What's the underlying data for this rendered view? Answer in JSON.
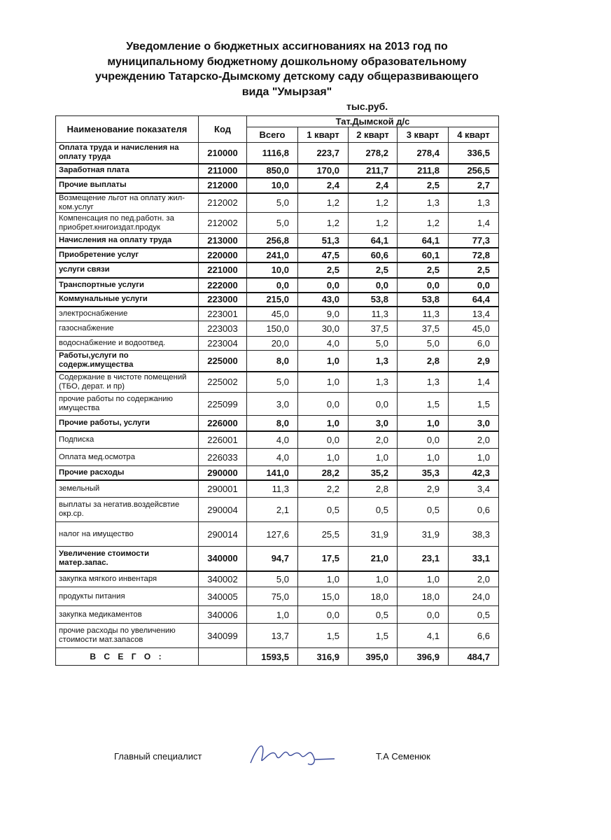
{
  "title_lines": [
    "Уведомление о бюджетных ассигнованиях на 2013 год по",
    "муниципальному бюджетному дошкольному образовательному",
    "учреждению Татарско-Дымскому детскому саду общеразвивающего",
    "вида \"Умырзая\""
  ],
  "units": "тыс.руб.",
  "table": {
    "header": {
      "name": "Наименование показателя",
      "code": "Код",
      "group": "Тат.Дымской д/с",
      "columns": [
        "Всего",
        "1 кварт",
        "2 кварт",
        "3 кварт",
        "4 кварт"
      ]
    },
    "rows": [
      {
        "bold": true,
        "cells": [
          "Оплата труда и начисления на оплату труда",
          "210000",
          "1116,8",
          "223,7",
          "278,2",
          "278,4",
          "336,5"
        ]
      },
      {
        "bold": true,
        "cells": [
          "Заработная плата",
          "211000",
          "850,0",
          "170,0",
          "211,7",
          "211,8",
          "256,5"
        ]
      },
      {
        "bold": true,
        "cells": [
          "Прочие выплаты",
          "212000",
          "10,0",
          "2,4",
          "2,4",
          "2,5",
          "2,7"
        ]
      },
      {
        "bold": false,
        "cells": [
          "Возмещение льгот на оплату жил-ком.услуг",
          "212002",
          "5,0",
          "1,2",
          "1,2",
          "1,3",
          "1,3"
        ]
      },
      {
        "bold": false,
        "cells": [
          "Компенсация по пед.работн. за приобрет.книгоиздат.продук",
          "212002",
          "5,0",
          "1,2",
          "1,2",
          "1,2",
          "1,4"
        ]
      },
      {
        "bold": true,
        "cells": [
          "Начисления на оплату труда",
          "213000",
          "256,8",
          "51,3",
          "64,1",
          "64,1",
          "77,3"
        ]
      },
      {
        "bold": true,
        "cells": [
          "Приобретение услуг",
          "220000",
          "241,0",
          "47,5",
          "60,6",
          "60,1",
          "72,8"
        ]
      },
      {
        "bold": true,
        "cells": [
          "услуги связи",
          "221000",
          "10,0",
          "2,5",
          "2,5",
          "2,5",
          "2,5"
        ]
      },
      {
        "bold": true,
        "cells": [
          "Транспортные услуги",
          "222000",
          "0,0",
          "0,0",
          "0,0",
          "0,0",
          "0,0"
        ]
      },
      {
        "bold": true,
        "cells": [
          "Коммунальные услуги",
          "223000",
          "215,0",
          "43,0",
          "53,8",
          "53,8",
          "64,4"
        ]
      },
      {
        "bold": false,
        "cells": [
          "электроснабжение",
          "223001",
          "45,0",
          "9,0",
          "11,3",
          "11,3",
          "13,4"
        ]
      },
      {
        "bold": false,
        "cells": [
          "газоснабжение",
          "223003",
          "150,0",
          "30,0",
          "37,5",
          "37,5",
          "45,0"
        ]
      },
      {
        "bold": false,
        "cells": [
          "водоснабжение и водоотвед.",
          "223004",
          "20,0",
          "4,0",
          "5,0",
          "5,0",
          "6,0"
        ]
      },
      {
        "bold": true,
        "cells": [
          "Работы,услуги по содерж.имущества",
          "225000",
          "8,0",
          "1,0",
          "1,3",
          "2,8",
          "2,9"
        ]
      },
      {
        "bold": false,
        "cells": [
          "Содержание в чистоте помещений (ТБО, дерат. и пр)",
          "225002",
          "5,0",
          "1,0",
          "1,3",
          "1,3",
          "1,4"
        ]
      },
      {
        "bold": false,
        "cells": [
          "прочие работы по содержанию имущества",
          "225099",
          "3,0",
          "0,0",
          "0,0",
          "1,5",
          "1,5"
        ]
      },
      {
        "bold": true,
        "cells": [
          "Прочие работы, услуги",
          "226000",
          "8,0",
          "1,0",
          "3,0",
          "1,0",
          "3,0"
        ]
      },
      {
        "bold": false,
        "cells": [
          "Подписка",
          "226001",
          "4,0",
          "0,0",
          "2,0",
          "0,0",
          "2,0"
        ]
      },
      {
        "bold": false,
        "cells": [
          "Оплата мед.осмотра",
          "226033",
          "4,0",
          "1,0",
          "1,0",
          "1,0",
          "1,0"
        ]
      },
      {
        "bold": true,
        "cells": [
          "Прочие расходы",
          "290000",
          "141,0",
          "28,2",
          "35,2",
          "35,3",
          "42,3"
        ]
      },
      {
        "bold": false,
        "cells": [
          "земельный",
          "290001",
          "11,3",
          "2,2",
          "2,8",
          "2,9",
          "3,4"
        ]
      },
      {
        "bold": false,
        "cells": [
          "выплаты за негатив.воздейсвтие окр.ср.",
          "290004",
          "2,1",
          "0,5",
          "0,5",
          "0,5",
          "0,6"
        ]
      },
      {
        "bold": false,
        "cells": [
          "налог на имущество",
          "290014",
          "127,6",
          "25,5",
          "31,9",
          "31,9",
          "38,3"
        ]
      },
      {
        "bold": true,
        "cells": [
          "Увеличение стоимости матер.запас.",
          "340000",
          "94,7",
          "17,5",
          "21,0",
          "23,1",
          "33,1"
        ]
      },
      {
        "bold": false,
        "cells": [
          "закупка мягкого инвентаря",
          "340002",
          "5,0",
          "1,0",
          "1,0",
          "1,0",
          "2,0"
        ]
      },
      {
        "bold": false,
        "cells": [
          "продукты питания",
          "340005",
          "75,0",
          "15,0",
          "18,0",
          "18,0",
          "24,0"
        ]
      },
      {
        "bold": false,
        "cells": [
          "закупка медикаментов",
          "340006",
          "1,0",
          "0,0",
          "0,5",
          "0,0",
          "0,5"
        ]
      },
      {
        "bold": false,
        "cells": [
          "прочие расходы по увеличению стоимости мат.запасов",
          "340099",
          "13,7",
          "1,5",
          "1,5",
          "4,1",
          "6,6"
        ]
      }
    ],
    "total": {
      "label": "В С Е Г О :",
      "values": [
        "1593,5",
        "316,9",
        "395,0",
        "396,9",
        "484,7"
      ]
    }
  },
  "signature": {
    "position": "Главный специалист",
    "name": "Т.А Семенюк"
  }
}
